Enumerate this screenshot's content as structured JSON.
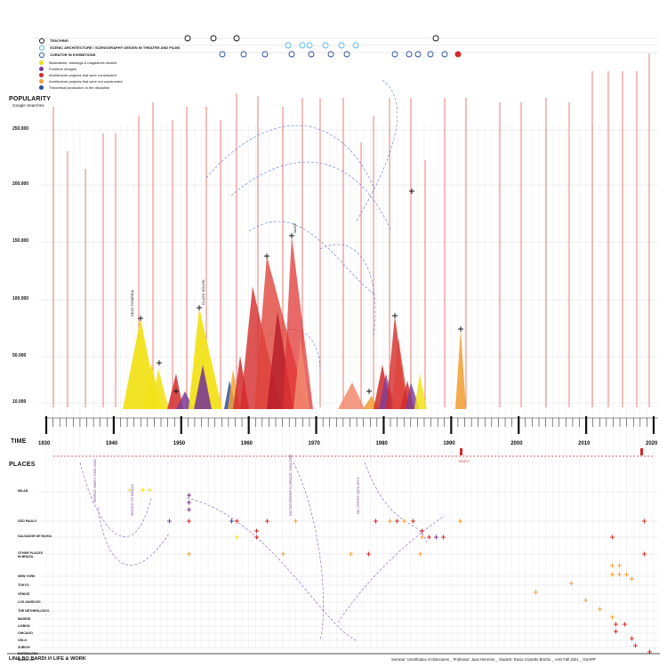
{
  "legend": {
    "rings": [
      {
        "label": "TEACHING",
        "color": "#111111"
      },
      {
        "label": "SCENIC ARCHITECTURE / SCENOGRAPHY DESIGN IN THEATRE AND FILMS",
        "color": "#56b8e6"
      },
      {
        "label": "CURATOR IN EXHIBITIONS",
        "color": "#2a4f9a"
      }
    ],
    "dots": [
      {
        "label": "Illustrations, drawings & magazines related",
        "color": "#f2e21b"
      },
      {
        "label": "Furniture designs",
        "color": "#7b3b94"
      },
      {
        "label": "Architecture projects that were constructed",
        "color": "#d42a2a"
      },
      {
        "label": "Architecture projects that were not constructed",
        "color": "#f2a23a"
      },
      {
        "label": "Theoretical production in the discipline",
        "color": "#2a4f9a"
      }
    ]
  },
  "popularity": {
    "title": "POPULARITY",
    "subtitle": "Google Searches",
    "ticks": [
      "250.000",
      "200.000",
      "150.000",
      "100.000",
      "50.000",
      "10.000"
    ]
  },
  "time": {
    "title": "TIME",
    "decades": [
      "1930",
      "1940",
      "1950",
      "1960",
      "1970",
      "1980",
      "1990",
      "2000",
      "2010",
      "2020"
    ]
  },
  "places": {
    "title": "PLACES",
    "rows": [
      "MILAN",
      "SÃO PAULO",
      "SALVADOR DE BAHIA",
      "OTHER PLACES IN BRAZIL",
      "NEW YORK",
      "TOKYO",
      "VENICE",
      "LOS ANGELES",
      "THE NETHERLANDS",
      "MADRID",
      "LISBON",
      "CHICAGO",
      "OSLO",
      "ZURICH",
      "BARCELONA",
      "MEXICO CITY"
    ]
  },
  "notes": {
    "ww2": "WORLD WAR II 1939-1945",
    "moves_brazil": "MOVES TO BRAZIL",
    "dictatorship": "DICTATORSHIP IN BRAZIL 1964-1985",
    "oil": "OIL CRISIS 1973-1974",
    "death": "DEATH"
  },
  "labels": {
    "sesc": "SESC POMPÉIA",
    "masp": "MASP",
    "glass_house": "GLASS HOUSE"
  },
  "footer": {
    "title": "LINA BO BARDI /// LIFE & WORK",
    "credits": "Seminar: Unorthodox Architectures  _  Professor: Juan Herreros  _  Student: Rocio Crosetto Brizzio  _  AAD Fall 2021  _  GSAPP"
  },
  "colors": {
    "yellow": "#f2e21b",
    "purple": "#7b3b94",
    "red": "#d42a2a",
    "orange": "#f2a23a",
    "blue": "#2a4f9a",
    "light_blue": "#56b8e6",
    "salmon": "#f28a6e"
  }
}
